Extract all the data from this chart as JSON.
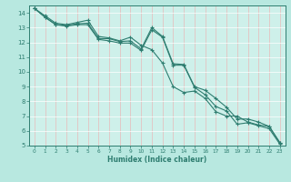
{
  "title": "",
  "xlabel": "Humidex (Indice chaleur)",
  "ylabel": "",
  "bg_color": "#b8e8e0",
  "plot_bg_color": "#cef0ea",
  "grid_color_h": "#ffffff",
  "grid_color_v": "#e8b8b8",
  "line_color": "#2e7d70",
  "xlim": [
    -0.5,
    23.5
  ],
  "ylim": [
    5,
    14.5
  ],
  "xticks": [
    0,
    1,
    2,
    3,
    4,
    5,
    6,
    7,
    8,
    9,
    10,
    11,
    12,
    13,
    14,
    15,
    16,
    17,
    18,
    19,
    20,
    21,
    22,
    23
  ],
  "yticks": [
    5,
    6,
    7,
    8,
    9,
    10,
    11,
    12,
    13,
    14
  ],
  "line1_x": [
    0,
    1,
    2,
    3,
    4,
    5,
    6,
    7,
    8,
    9,
    10,
    11,
    12,
    13,
    14,
    15,
    16,
    17,
    18,
    19,
    20,
    21,
    22,
    23
  ],
  "line1_y": [
    14.3,
    13.8,
    13.3,
    13.2,
    13.35,
    13.5,
    12.4,
    12.3,
    12.1,
    12.35,
    11.8,
    11.5,
    10.6,
    9.0,
    8.6,
    8.7,
    8.2,
    7.3,
    7.0,
    7.0,
    6.6,
    6.4,
    6.3,
    5.2
  ],
  "line2_x": [
    0,
    1,
    2,
    3,
    4,
    5,
    6,
    7,
    8,
    9,
    10,
    11,
    12,
    13,
    14,
    15,
    16,
    17,
    18,
    19,
    20,
    21,
    22,
    23
  ],
  "line2_y": [
    14.3,
    13.7,
    13.2,
    13.15,
    13.25,
    13.3,
    12.25,
    12.25,
    12.05,
    12.1,
    11.55,
    13.0,
    12.4,
    10.55,
    10.5,
    9.0,
    8.75,
    8.2,
    7.6,
    6.8,
    6.8,
    6.6,
    6.3,
    5.2
  ],
  "line3_x": [
    0,
    1,
    2,
    3,
    4,
    5,
    6,
    7,
    8,
    9,
    10,
    11,
    12,
    13,
    14,
    15,
    16,
    17,
    18,
    19,
    20,
    21,
    22,
    23
  ],
  "line3_y": [
    14.3,
    13.7,
    13.2,
    13.1,
    13.2,
    13.2,
    12.2,
    12.1,
    11.95,
    11.95,
    11.45,
    12.85,
    12.35,
    10.45,
    10.45,
    8.95,
    8.45,
    7.65,
    7.35,
    6.45,
    6.55,
    6.35,
    6.15,
    5.1
  ]
}
